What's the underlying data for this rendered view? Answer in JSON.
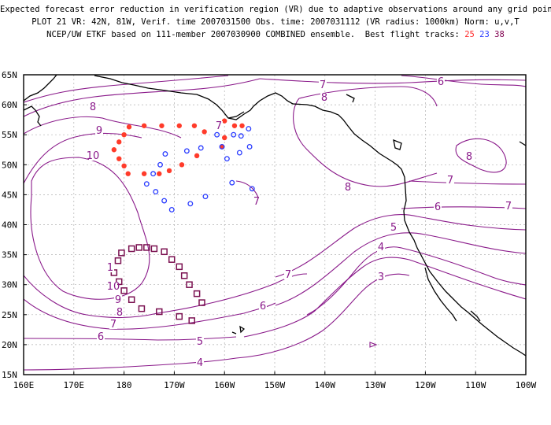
{
  "title": {
    "line1": "Expected forecast error reduction in verification region (VR) due to adaptive observations around any grid point.",
    "line2": "PLOT 21 VR: 42N, 81W, Verif. time 2007031500 Obs. time: 2007031112 (VR radius: 1000km) Norm: u,v,T",
    "line3_prefix": "NCEP/UW ETKF based on 111-member 2007030900 COMBINED ensemble.  Best flight tracks: ",
    "track_a": "25",
    "track_b": "23",
    "track_c": "38"
  },
  "axes": {
    "lat_labels": [
      "65N",
      "60N",
      "55N",
      "50N",
      "45N",
      "40N",
      "35N",
      "30N",
      "25N",
      "20N",
      "15N"
    ],
    "lon_labels": [
      "160E",
      "170E",
      "180",
      "170W",
      "160W",
      "150W",
      "140W",
      "130W",
      "120W",
      "110W",
      "100W"
    ]
  },
  "contour_labels": [
    "6",
    "7",
    "8",
    "9",
    "10",
    "7",
    "8",
    "8",
    "7",
    "6",
    "7",
    "5",
    "4",
    "3",
    "7",
    "6",
    "5",
    "4",
    "1",
    "10",
    "9",
    "8",
    "7",
    "6",
    "7",
    "8"
  ],
  "colors": {
    "contour": "#8a1a8a",
    "track_red": "#ff3b2a",
    "track_blue": "#2a3cff",
    "track_purple": "#7a1050",
    "coast": "#000000",
    "grid": "#b0b0b0"
  },
  "tracks": {
    "red": [
      [
        -176,
        56.5
      ],
      [
        -179,
        56.3
      ],
      [
        -180,
        55
      ],
      [
        -181,
        53.8
      ],
      [
        -182,
        52.5
      ],
      [
        -181,
        51
      ],
      [
        -180,
        49.8
      ],
      [
        -179.2,
        48.5
      ],
      [
        -176,
        48.5
      ],
      [
        -173,
        48.5
      ],
      [
        -171,
        49
      ],
      [
        -168.5,
        50
      ],
      [
        -165.5,
        51.5
      ],
      [
        -164,
        55.5
      ],
      [
        -166,
        56.5
      ],
      [
        -169,
        56.5
      ],
      [
        -172.5,
        56.5
      ],
      [
        -161,
        56.5
      ],
      [
        -160,
        57.3
      ],
      [
        -158,
        56.5
      ],
      [
        -156.5,
        56.5
      ],
      [
        -160,
        54.5
      ],
      [
        -160.5,
        53
      ]
    ],
    "blue": [
      [
        -155.2,
        56
      ],
      [
        -156.7,
        54.8
      ],
      [
        -155,
        53
      ],
      [
        -157,
        52
      ],
      [
        -159.5,
        51
      ],
      [
        -160.5,
        53
      ],
      [
        -158.2,
        55
      ],
      [
        -161.5,
        55
      ],
      [
        -164.7,
        52.8
      ],
      [
        -167.5,
        52.3
      ],
      [
        -171.8,
        51.8
      ],
      [
        -172.8,
        50
      ],
      [
        -174.2,
        48.5
      ],
      [
        -175.5,
        46.8
      ],
      [
        -173.7,
        45.5
      ],
      [
        -172,
        44
      ],
      [
        -170.5,
        42.5
      ],
      [
        -166.8,
        43.5
      ],
      [
        -163.8,
        44.7
      ],
      [
        -158.5,
        47
      ],
      [
        -154.5,
        46
      ]
    ],
    "purple": [
      [
        -178.5,
        36
      ],
      [
        -177,
        36.2
      ],
      [
        -175.5,
        36.2
      ],
      [
        -174,
        36
      ],
      [
        -172,
        35.5
      ],
      [
        -170.5,
        34.2
      ],
      [
        -169,
        33
      ],
      [
        -168,
        31.5
      ],
      [
        -167,
        30
      ],
      [
        -165.5,
        28.5
      ],
      [
        -164.5,
        27
      ],
      [
        -180.5,
        35.3
      ],
      [
        -181.2,
        34
      ],
      [
        -182,
        32
      ],
      [
        -181,
        30.5
      ],
      [
        -180,
        29
      ],
      [
        -178.5,
        27.5
      ],
      [
        -176.5,
        26
      ],
      [
        -173,
        25.5
      ],
      [
        -169,
        24.7
      ],
      [
        -166.5,
        24
      ]
    ]
  }
}
